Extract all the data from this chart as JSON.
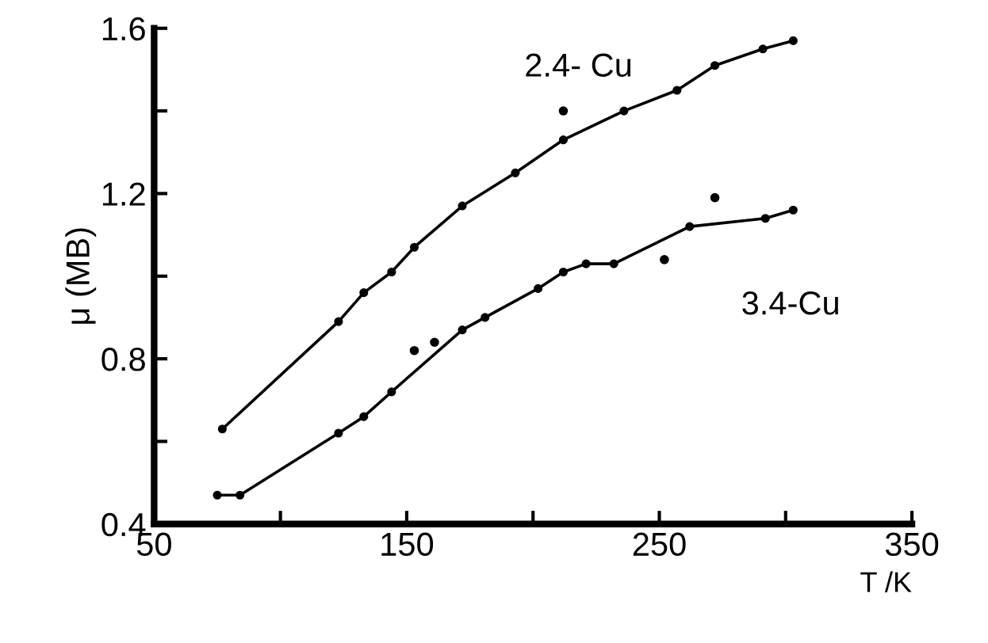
{
  "chart_data": {
    "type": "line",
    "xlabel": "T /K",
    "ylabel": "μ (MB)",
    "xlim": [
      50,
      350
    ],
    "ylim": [
      0.4,
      1.6
    ],
    "xticks": [
      50,
      {
        "value": 100,
        "label": null
      },
      150,
      {
        "value": 200,
        "label": null
      },
      250,
      {
        "value": 300,
        "label": null
      },
      350
    ],
    "yticks": [
      0.4,
      {
        "value": 0.6,
        "label": null
      },
      0.8,
      {
        "value": 1.0,
        "label": null
      },
      1.2,
      {
        "value": 1.4,
        "label": null
      },
      1.6
    ],
    "grid": false,
    "legend": false,
    "marker": "circle",
    "line_style": "solid",
    "series": [
      {
        "name": "2.4- Cu",
        "color": "#000000",
        "x": [
          77,
          123,
          133,
          144,
          153,
          172,
          193,
          212,
          236,
          257,
          272,
          291,
          303
        ],
        "values": [
          0.63,
          0.89,
          0.96,
          1.01,
          1.07,
          1.17,
          1.25,
          1.33,
          1.4,
          1.45,
          1.51,
          1.55,
          1.57
        ]
      },
      {
        "name": "3.4-Cu",
        "color": "#000000",
        "x": [
          75,
          84,
          123,
          133,
          144,
          172,
          181,
          202,
          212,
          221,
          232,
          262,
          292,
          303
        ],
        "values": [
          0.47,
          0.47,
          0.62,
          0.66,
          0.72,
          0.87,
          0.9,
          0.97,
          1.01,
          1.03,
          1.03,
          1.12,
          1.14,
          1.16
        ]
      },
      {
        "type": "scatter",
        "color": "#000000",
        "x": [
          212,
          153,
          161,
          252,
          272
        ],
        "values": [
          1.4,
          0.82,
          0.84,
          1.04,
          1.19
        ]
      }
    ]
  }
}
